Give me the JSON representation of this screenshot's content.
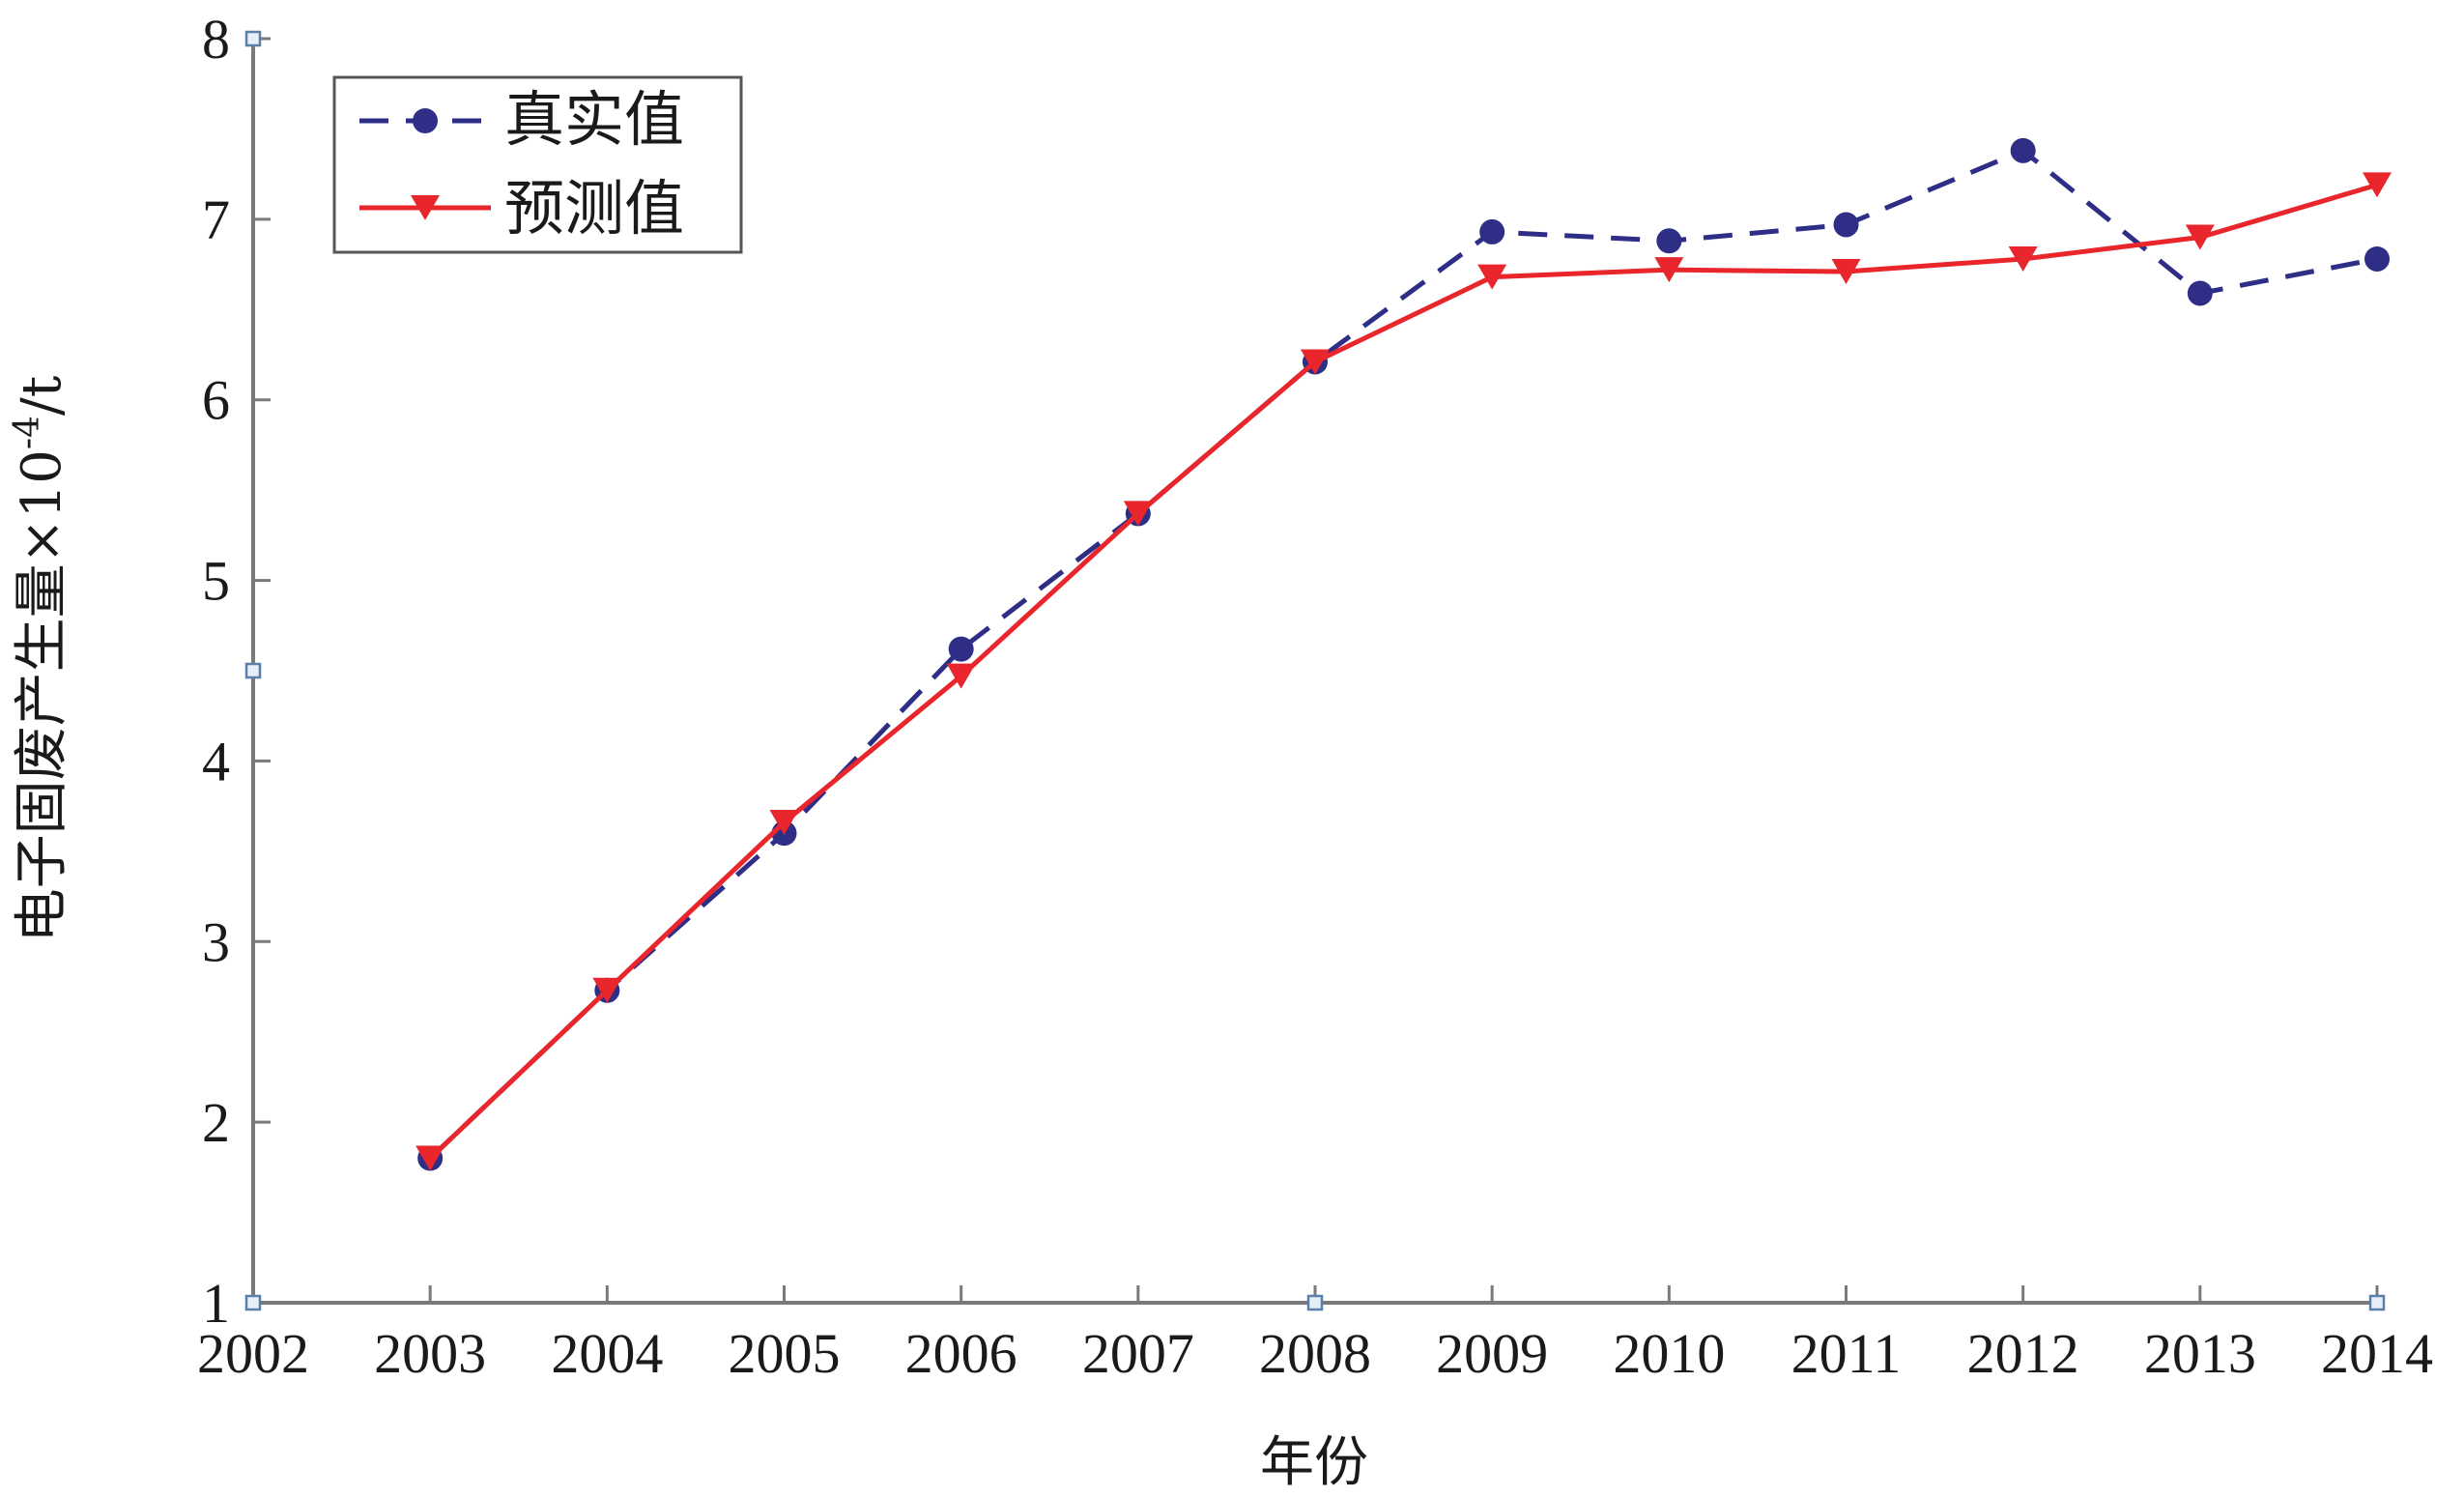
{
  "chart_data": {
    "type": "line",
    "x": [
      2003,
      2004,
      2005,
      2006,
      2007,
      2008,
      2009,
      2010,
      2011,
      2012,
      2013,
      2014
    ],
    "series": [
      {
        "name": "真实值",
        "values": [
          1.8,
          2.73,
          3.6,
          4.62,
          5.37,
          6.21,
          6.93,
          6.88,
          6.97,
          7.38,
          6.59,
          6.78
        ],
        "color": "#2e2e86",
        "line_style": "dashed",
        "marker": "circle"
      },
      {
        "name": "预测值",
        "values": [
          1.8,
          2.73,
          3.66,
          4.47,
          5.37,
          6.21,
          6.68,
          6.72,
          6.71,
          6.78,
          6.9,
          7.19
        ],
        "color": "#e8262c",
        "line_style": "solid",
        "marker": "triangle-down"
      }
    ],
    "xlabel": "年份",
    "ylabel_text": "电子固废产生量×10",
    "ylabel_sup": "-4",
    "ylabel_unit": "/t",
    "xlim": [
      2002,
      2014
    ],
    "ylim": [
      1,
      8
    ],
    "xticks": [
      "2002",
      "2003",
      "2004",
      "2005",
      "2006",
      "2007",
      "2008",
      "2009",
      "2010",
      "2011",
      "2012",
      "2013",
      "2014"
    ],
    "yticks": [
      "1",
      "2",
      "3",
      "4",
      "5",
      "6",
      "7",
      "8"
    ],
    "grid": false,
    "legend_position": "top-left",
    "axis_color": "#7a7a7a"
  }
}
